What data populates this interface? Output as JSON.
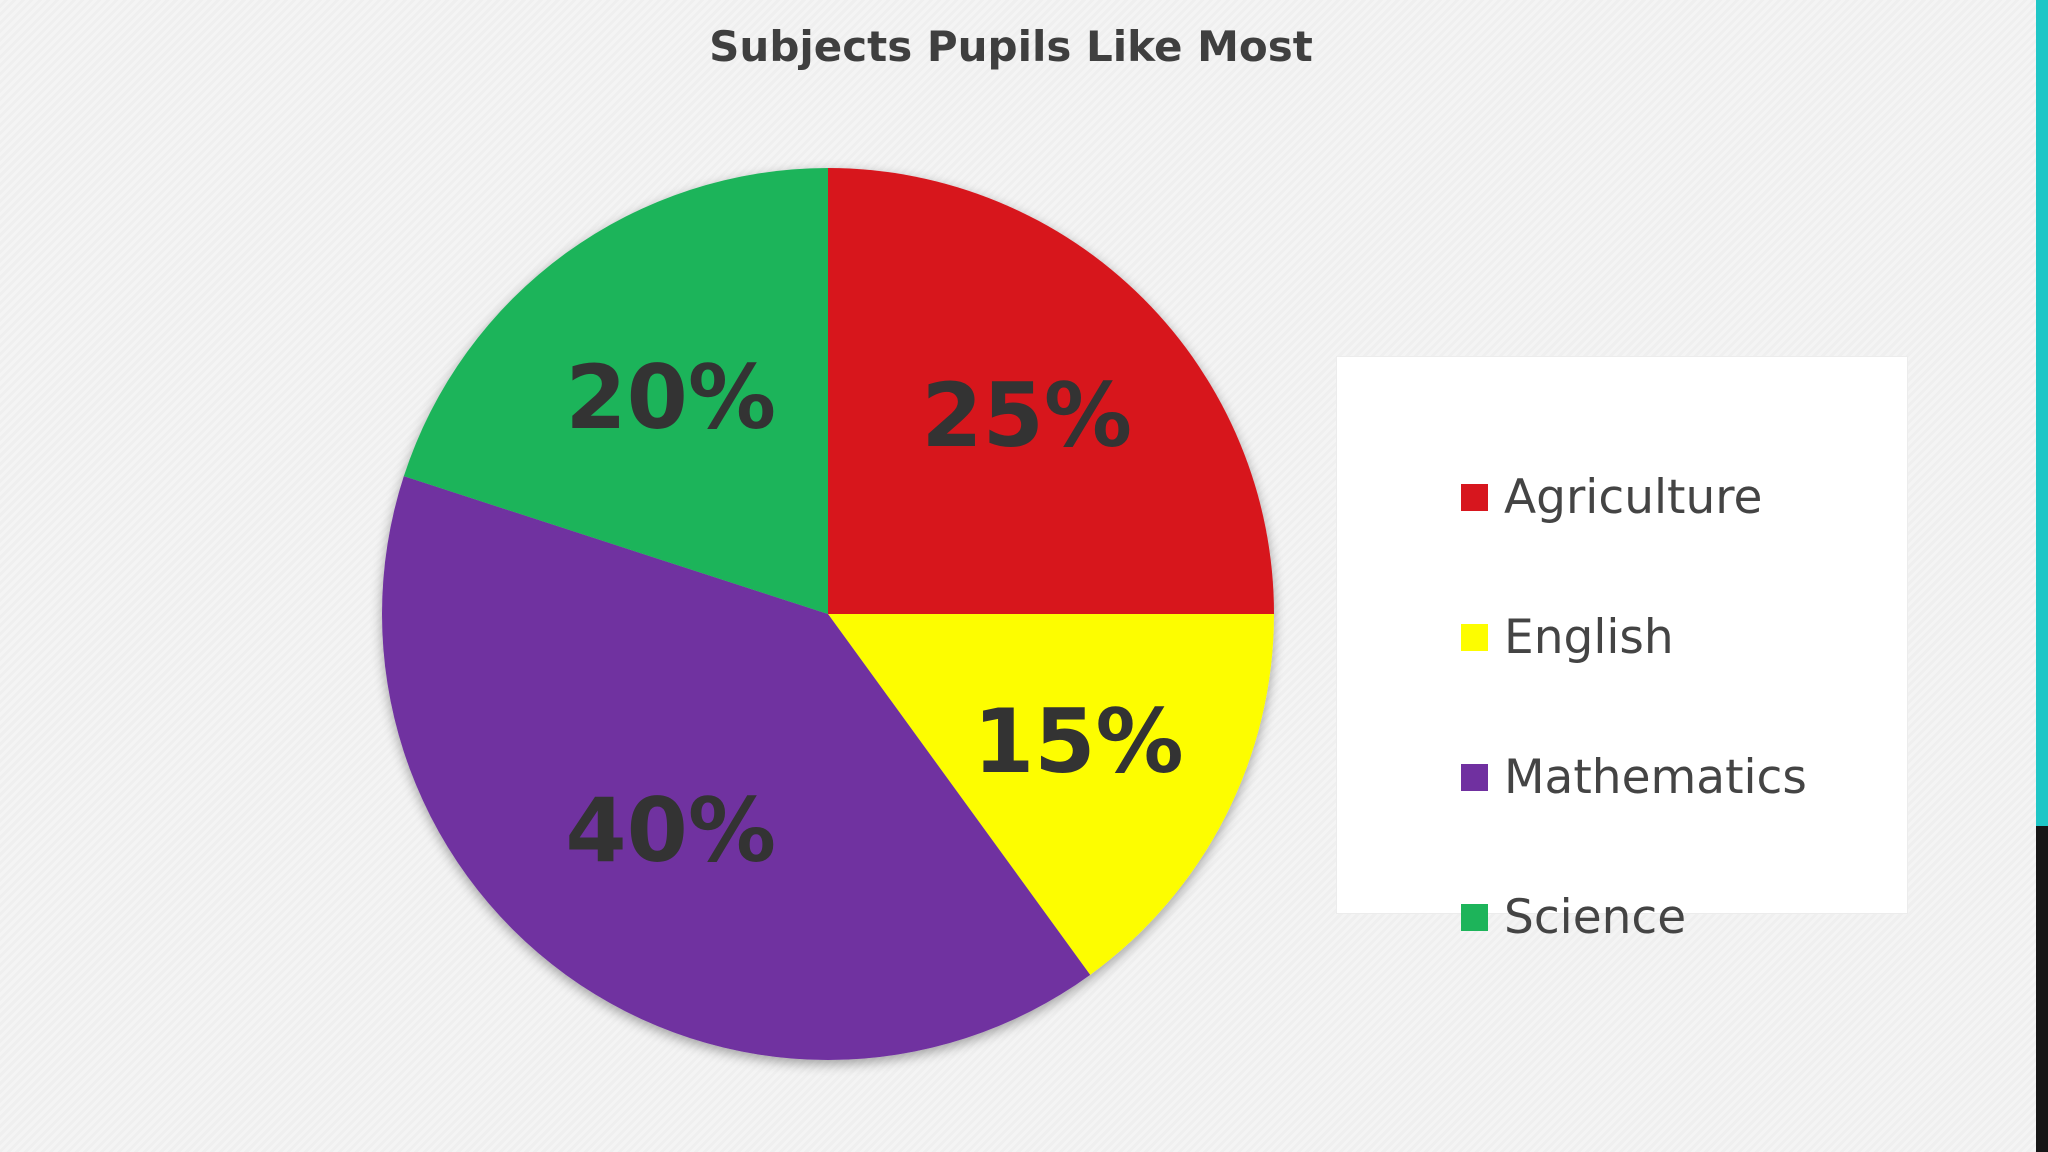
{
  "chart_data": {
    "type": "pie",
    "title": "Subjects Pupils Like Most",
    "slices": [
      {
        "label": "Agriculture",
        "value": 25,
        "display": "25%",
        "color": "#d7161e"
      },
      {
        "label": "English",
        "value": 15,
        "display": "15%",
        "color": "#fdfd00"
      },
      {
        "label": "Mathematics",
        "value": 40,
        "display": "40%",
        "color": "#7030a0"
      },
      {
        "label": "Science",
        "value": 20,
        "display": "20%",
        "color": "#1db45a"
      }
    ],
    "start_angle": "12 o'clock",
    "direction": "clockwise",
    "data_labels": "inside",
    "legend_position": "right"
  },
  "legend": {
    "items": [
      {
        "label": "Agriculture",
        "color": "#d7161e"
      },
      {
        "label": "English",
        "color": "#fdfd00"
      },
      {
        "label": "Mathematics",
        "color": "#7030a0"
      },
      {
        "label": "Science",
        "color": "#1db45a"
      }
    ]
  },
  "colors": {
    "background": "#f2f2f2",
    "title_text": "#3f3f3f",
    "data_label_text": "#333333",
    "edge_accent": "#1ec6c6"
  }
}
